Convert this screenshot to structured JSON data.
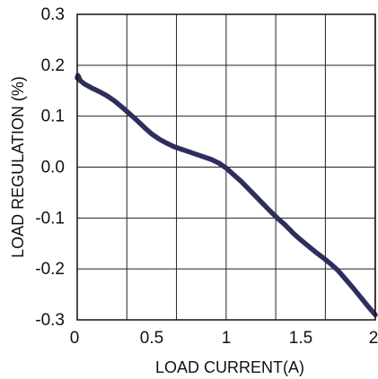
{
  "chart_data": {
    "type": "line",
    "xlabel": "LOAD CURRENT(A)",
    "ylabel": "LOAD REGULATION  (%)",
    "xlim": [
      0,
      2
    ],
    "ylim": [
      -0.3,
      0.3
    ],
    "x_ticks": [
      0,
      0.5,
      1,
      1.5,
      2
    ],
    "x_tick_labels": [
      "0",
      "0.5",
      "1",
      "1.5",
      "2"
    ],
    "y_ticks": [
      0.3,
      0.2,
      0.1,
      0.0,
      -0.1,
      -0.2,
      -0.3
    ],
    "y_tick_labels": [
      "0.3",
      "0.2",
      "0.1",
      "0.0",
      "-0.1",
      "-0.2",
      "-0.3"
    ],
    "grid": true,
    "grid_x_step": 0.333,
    "grid_y_step": 0.1,
    "line_color": "#2e2e5e",
    "series": [
      {
        "x": [
          0.0,
          0.005,
          0.02,
          0.05,
          0.1,
          0.15,
          0.2,
          0.25,
          0.3,
          0.35,
          0.4,
          0.45,
          0.5,
          0.55,
          0.6,
          0.65,
          0.7,
          0.75,
          0.8,
          0.85,
          0.9,
          0.95,
          1.0,
          1.05,
          1.1,
          1.15,
          1.2,
          1.25,
          1.3,
          1.35,
          1.4,
          1.45,
          1.5,
          1.55,
          1.6,
          1.65,
          1.7,
          1.75,
          1.8,
          1.85,
          1.9,
          1.95,
          2.0
        ],
        "y": [
          0.175,
          0.18,
          0.17,
          0.163,
          0.155,
          0.148,
          0.14,
          0.13,
          0.118,
          0.105,
          0.092,
          0.078,
          0.065,
          0.055,
          0.047,
          0.04,
          0.035,
          0.03,
          0.025,
          0.02,
          0.015,
          0.008,
          -0.002,
          -0.015,
          -0.028,
          -0.043,
          -0.058,
          -0.073,
          -0.088,
          -0.102,
          -0.115,
          -0.13,
          -0.143,
          -0.155,
          -0.167,
          -0.178,
          -0.19,
          -0.203,
          -0.22,
          -0.237,
          -0.255,
          -0.273,
          -0.29
        ]
      }
    ]
  }
}
